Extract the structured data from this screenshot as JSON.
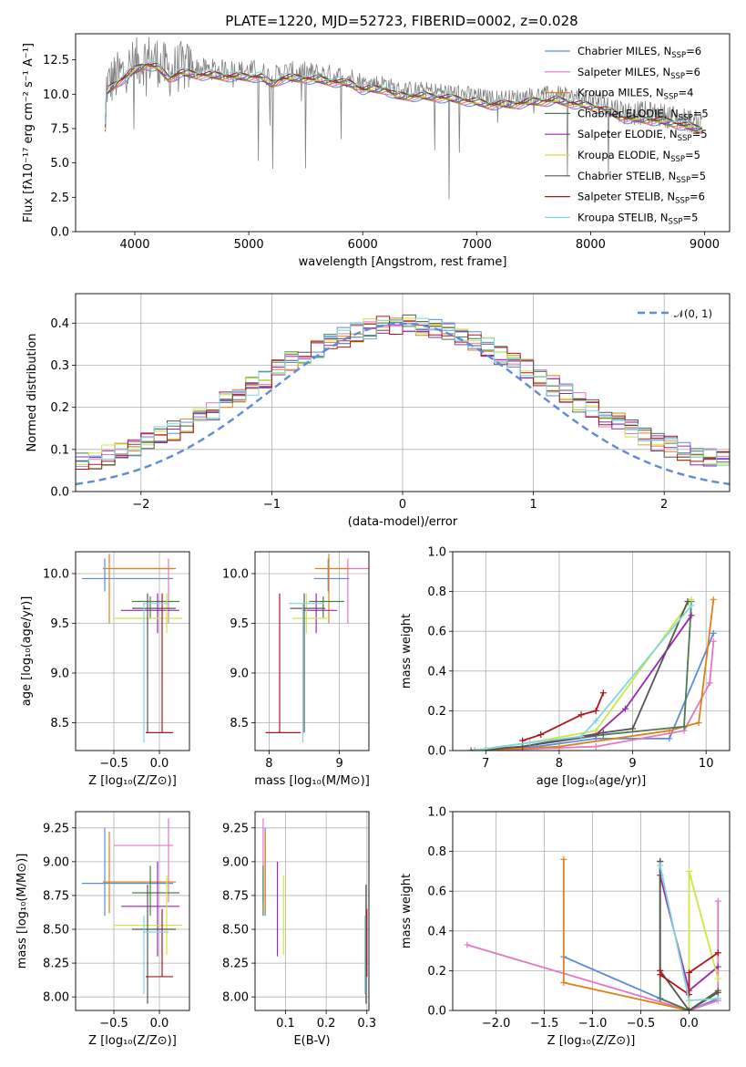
{
  "title": "PLATE=1220, MJD=52723, FIBERID=0002, z=0.028",
  "colors": {
    "chab_miles": "#5b8bd9",
    "salp_miles": "#e377c2",
    "krou_miles": "#e0801a",
    "chab_elodie": "#4e7a4e",
    "salp_elodie": "#9b27b0",
    "krou_elodie": "#cde840",
    "chab_stelib": "#555555",
    "salp_stelib": "#b0161c",
    "krou_stelib": "#7fd6df",
    "data": "#808080",
    "normal": "#5b8bd9"
  },
  "models": [
    {
      "key": "chab_miles",
      "label": "Chabrier MILES, N",
      "sub": "SSP",
      "suffix": "=6"
    },
    {
      "key": "salp_miles",
      "label": "Salpeter MILES, N",
      "sub": "SSP",
      "suffix": "=6"
    },
    {
      "key": "krou_miles",
      "label": "Kroupa MILES, N",
      "sub": "SSP",
      "suffix": "=4"
    },
    {
      "key": "chab_elodie",
      "label": "Chabrier ELODIE, N",
      "sub": "SSP",
      "suffix": "=5"
    },
    {
      "key": "salp_elodie",
      "label": "Salpeter ELODIE, N",
      "sub": "SSP",
      "suffix": "=5"
    },
    {
      "key": "krou_elodie",
      "label": "Kroupa ELODIE, N",
      "sub": "SSP",
      "suffix": "=5"
    },
    {
      "key": "chab_stelib",
      "label": "Chabrier STELIB, N",
      "sub": "SSP",
      "suffix": "=5"
    },
    {
      "key": "salp_stelib",
      "label": "Salpeter STELIB, N",
      "sub": "SSP",
      "suffix": "=6"
    },
    {
      "key": "krou_stelib",
      "label": "Kroupa STELIB, N",
      "sub": "SSP",
      "suffix": "=5"
    }
  ],
  "chart_data": [
    {
      "id": "spectrum",
      "type": "line",
      "title": "PLATE=1220, MJD=52723, FIBERID=0002, z=0.028",
      "xlabel": "wavelength [Angstrom, rest frame]",
      "ylabel": "Flux [fλ10⁻¹⁷ erg cm⁻² s⁻¹ A⁻¹]",
      "xlim": [
        3480,
        9220
      ],
      "ylim": [
        0,
        14.4
      ],
      "xticks": [
        4000,
        5000,
        6000,
        7000,
        8000,
        9000
      ],
      "yticks": [
        0.0,
        2.5,
        5.0,
        7.5,
        10.0,
        12.5
      ],
      "legend": "top-right",
      "envelope": [
        [
          3750,
          10.6
        ],
        [
          3800,
          11.0
        ],
        [
          3900,
          11.6
        ],
        [
          4000,
          12.2
        ],
        [
          4100,
          12.6
        ],
        [
          4200,
          12.4
        ],
        [
          4300,
          11.6
        ],
        [
          4400,
          12.0
        ],
        [
          4500,
          11.9
        ],
        [
          4700,
          11.8
        ],
        [
          4900,
          11.7
        ],
        [
          5100,
          11.7
        ],
        [
          5200,
          11.2
        ],
        [
          5300,
          11.6
        ],
        [
          5500,
          11.6
        ],
        [
          5700,
          11.4
        ],
        [
          5900,
          11.2
        ],
        [
          6000,
          10.8
        ],
        [
          6200,
          10.8
        ],
        [
          6300,
          10.3
        ],
        [
          6500,
          10.3
        ],
        [
          6700,
          10.2
        ],
        [
          6900,
          10.0
        ],
        [
          7100,
          9.7
        ],
        [
          7300,
          9.7
        ],
        [
          7500,
          9.9
        ],
        [
          7700,
          10.0
        ],
        [
          7900,
          9.7
        ],
        [
          8100,
          9.4
        ],
        [
          8300,
          8.7
        ],
        [
          8500,
          8.6
        ],
        [
          8700,
          8.4
        ],
        [
          8900,
          8.0
        ],
        [
          9000,
          7.9
        ]
      ]
    },
    {
      "id": "residuals",
      "type": "area",
      "xlabel": "(data-model)/error",
      "ylabel": "Normed distribution",
      "xlim": [
        -2.5,
        2.5
      ],
      "ylim": [
        0,
        0.47
      ],
      "xticks": [
        -2,
        -1,
        0,
        1,
        2
      ],
      "yticks": [
        0.0,
        0.1,
        0.2,
        0.3,
        0.4
      ],
      "legend": "top-right",
      "normal_label": "𝒩(0, 1)",
      "bin_width": 0.1
    },
    {
      "id": "age_vs_Z",
      "type": "scatter",
      "xlabel": "Z [log₁₀(Z/Z⊙)]",
      "ylabel": "age  [log₁₀(age/yr)]",
      "xlim": [
        -0.92,
        0.33
      ],
      "ylim": [
        8.22,
        10.22
      ],
      "xticks": [
        -0.5,
        0.0
      ],
      "yticks": [
        8.5,
        9.0,
        9.5,
        10.0
      ]
    },
    {
      "id": "age_vs_mass",
      "type": "scatter",
      "xlabel": "mass [log₁₀(M/M⊙)]",
      "ylabel": "",
      "xlim": [
        7.8,
        9.42
      ],
      "ylim": [
        8.22,
        10.22
      ],
      "xticks": [
        8,
        9
      ],
      "yticks": [
        8.5,
        9.0,
        9.5,
        10.0
      ]
    },
    {
      "id": "weight_vs_age",
      "type": "line",
      "xlabel": "age  [log₁₀(age/yr)]",
      "ylabel": "mass weight",
      "xlim": [
        6.55,
        10.32
      ],
      "ylim": [
        0,
        1.0
      ],
      "xticks": [
        7,
        8,
        9,
        10
      ],
      "yticks": [
        0.0,
        0.2,
        0.4,
        0.6,
        0.8,
        1.0
      ],
      "series": [
        {
          "key": "chab_miles",
          "x": [
            7.0,
            7.7,
            8.5,
            9.5,
            10.1
          ],
          "y": [
            0.0,
            0.02,
            0.06,
            0.06,
            0.59
          ]
        },
        {
          "key": "salp_miles",
          "x": [
            7.0,
            8.5,
            9.7,
            10.05,
            10.1
          ],
          "y": [
            0.0,
            0.02,
            0.1,
            0.34,
            0.55
          ]
        },
        {
          "key": "krou_miles",
          "x": [
            7.0,
            8.0,
            9.5,
            9.9,
            10.1
          ],
          "y": [
            0.0,
            0.02,
            0.1,
            0.14,
            0.76
          ]
        },
        {
          "key": "chab_elodie",
          "x": [
            6.85,
            7.5,
            8.6,
            9.7,
            9.8
          ],
          "y": [
            0.0,
            0.02,
            0.08,
            0.12,
            0.75
          ]
        },
        {
          "key": "salp_elodie",
          "x": [
            6.85,
            7.5,
            8.5,
            8.9,
            9.8
          ],
          "y": [
            0.0,
            0.02,
            0.08,
            0.21,
            0.68
          ]
        },
        {
          "key": "krou_elodie",
          "x": [
            6.8,
            7.6,
            8.5,
            9.8
          ],
          "y": [
            0.0,
            0.04,
            0.1,
            0.76
          ]
        },
        {
          "key": "chab_stelib",
          "x": [
            6.8,
            7.5,
            8.6,
            9.0,
            9.75
          ],
          "y": [
            0.0,
            0.02,
            0.09,
            0.11,
            0.75
          ]
        },
        {
          "key": "salp_stelib",
          "x": [
            7.5,
            7.75,
            8.3,
            8.5,
            8.6
          ],
          "y": [
            0.05,
            0.08,
            0.18,
            0.2,
            0.29
          ]
        },
        {
          "key": "krou_stelib",
          "x": [
            6.85,
            7.6,
            8.3,
            8.5,
            9.8
          ],
          "y": [
            0.0,
            0.04,
            0.07,
            0.15,
            0.73
          ]
        }
      ]
    },
    {
      "id": "mass_vs_Z",
      "type": "scatter",
      "xlabel": "Z [log₁₀(Z/Z⊙)]",
      "ylabel": "mass [log₁₀(M/M⊙)]",
      "xlim": [
        -0.92,
        0.33
      ],
      "ylim": [
        7.9,
        9.37
      ],
      "xticks": [
        -0.5,
        0.0
      ],
      "yticks": [
        8.0,
        8.25,
        8.5,
        8.75,
        9.0,
        9.25
      ]
    },
    {
      "id": "mass_vs_ebv",
      "type": "scatter",
      "xlabel": "E(B-V)",
      "ylabel": "",
      "xlim": [
        0.025,
        0.305
      ],
      "ylim": [
        7.9,
        9.37
      ],
      "xticks": [
        0.1,
        0.2,
        0.3
      ],
      "yticks": [
        8.0,
        8.25,
        8.5,
        8.75,
        9.0,
        9.25
      ]
    },
    {
      "id": "weight_vs_Z",
      "type": "line",
      "xlabel": "Z [log₁₀(Z/Z⊙)]",
      "ylabel": "mass weight",
      "xlim": [
        -2.45,
        0.42
      ],
      "ylim": [
        0,
        1.0
      ],
      "xticks": [
        -2.0,
        -1.5,
        -1.0,
        -0.5,
        0.0
      ],
      "yticks": [
        0.0,
        0.2,
        0.4,
        0.6,
        0.8,
        1.0
      ],
      "series": [
        {
          "key": "chab_miles",
          "x": [
            -1.3,
            -0.3,
            0.0,
            0.3
          ],
          "y": [
            0.27,
            0.06,
            0.0,
            0.06
          ]
        },
        {
          "key": "salp_miles",
          "x": [
            -2.3,
            0.0,
            0.3,
            0.3
          ],
          "y": [
            0.33,
            0.0,
            0.05,
            0.55
          ]
        },
        {
          "key": "krou_miles",
          "x": [
            -1.3,
            -1.3,
            0.0,
            0.3
          ],
          "y": [
            0.76,
            0.14,
            0.0,
            0.1
          ]
        },
        {
          "key": "chab_elodie",
          "x": [
            -0.3,
            -0.3,
            0.0,
            0.3
          ],
          "y": [
            0.75,
            0.06,
            0.0,
            0.1
          ]
        },
        {
          "key": "salp_elodie",
          "x": [
            -0.3,
            0.0,
            0.3
          ],
          "y": [
            0.68,
            0.1,
            0.22
          ]
        },
        {
          "key": "krou_elodie",
          "x": [
            0.0,
            0.0,
            0.3
          ],
          "y": [
            0.0,
            0.7,
            0.16
          ]
        },
        {
          "key": "chab_stelib",
          "x": [
            -0.3,
            -0.3,
            0.0,
            0.3
          ],
          "y": [
            0.75,
            0.2,
            0.0,
            0.09
          ]
        },
        {
          "key": "salp_stelib",
          "x": [
            -0.3,
            -0.3,
            0.0,
            0.0,
            0.3
          ],
          "y": [
            0.2,
            0.18,
            0.08,
            0.19,
            0.29
          ]
        },
        {
          "key": "krou_stelib",
          "x": [
            -0.3,
            0.0,
            0.3
          ],
          "y": [
            0.73,
            0.05,
            0.06
          ]
        }
      ]
    }
  ],
  "errorbars": [
    {
      "key": "chab_miles",
      "Z": [
        -0.85,
        0.15
      ],
      "Zc": -0.6,
      "age": [
        9.82,
        10.15
      ],
      "agec": 9.95,
      "m": [
        8.6,
        9.25
      ],
      "mc": 8.84,
      "ebv": 0.05
    },
    {
      "key": "salp_miles",
      "Z": [
        -0.5,
        0.15
      ],
      "Zc": 0.1,
      "age": [
        9.5,
        10.15
      ],
      "agec": 10.05,
      "m": [
        8.7,
        9.32
      ],
      "mc": 9.12,
      "ebv": 0.045
    },
    {
      "key": "krou_miles",
      "Z": [
        -0.62,
        0.18
      ],
      "Zc": -0.55,
      "age": [
        9.5,
        10.2
      ],
      "agec": 10.05,
      "m": [
        8.62,
        9.22
      ],
      "mc": 8.85,
      "ebv": 0.05
    },
    {
      "key": "chab_elodie",
      "Z": [
        -0.3,
        0.22
      ],
      "Zc": -0.1,
      "age": [
        9.55,
        9.77
      ],
      "agec": 9.72,
      "m": [
        8.6,
        8.97
      ],
      "mc": 8.77,
      "ebv": 0.045
    },
    {
      "key": "salp_elodie",
      "Z": [
        -0.42,
        0.22
      ],
      "Zc": -0.02,
      "age": [
        9.4,
        9.8
      ],
      "agec": 9.63,
      "m": [
        8.3,
        9.0
      ],
      "mc": 8.67,
      "ebv": 0.08
    },
    {
      "key": "krou_elodie",
      "Z": [
        -0.5,
        0.25
      ],
      "Zc": 0.08,
      "age": [
        9.4,
        9.8
      ],
      "agec": 9.55,
      "m": [
        8.31,
        8.9
      ],
      "mc": 8.53,
      "ebv": 0.095
    },
    {
      "key": "chab_stelib",
      "Z": [
        -0.3,
        0.18
      ],
      "Zc": -0.13,
      "age": [
        8.4,
        9.8
      ],
      "agec": 9.65,
      "m": [
        7.95,
        8.83
      ],
      "mc": 8.5,
      "ebv": 0.298
    },
    {
      "key": "salp_stelib",
      "Z": [
        -0.15,
        0.15
      ],
      "Zc": 0.03,
      "age": [
        8.4,
        9.8
      ],
      "agec": 8.4,
      "m": [
        8.15,
        8.65
      ],
      "mc": 8.15,
      "ebv": 0.3
    },
    {
      "key": "krou_stelib",
      "Z": [
        -0.18,
        0.1
      ],
      "Zc": -0.17,
      "age": [
        8.3,
        9.7
      ],
      "agec": 9.7,
      "m": [
        8.02,
        8.6
      ],
      "mc": 8.48,
      "ebv": 0.295
    }
  ]
}
